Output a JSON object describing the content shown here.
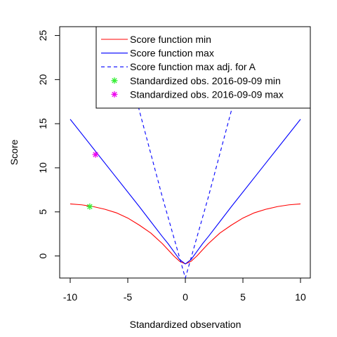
{
  "chart_data": {
    "type": "line",
    "title": "",
    "xlabel": "Standardized observation",
    "ylabel": "Score",
    "xlim": [
      -10,
      10
    ],
    "ylim": [
      -2.5,
      26
    ],
    "xticks": [
      -10,
      -5,
      0,
      5,
      10
    ],
    "yticks": [
      0,
      5,
      10,
      15,
      20,
      25
    ],
    "grid": false,
    "legend_position": "top-right",
    "series": [
      {
        "name": "Score function min",
        "kind": "line",
        "style": "solid",
        "color": "#ff0000",
        "x": [
          -10,
          -9,
          -8,
          -7,
          -6,
          -5,
          -4,
          -3,
          -2,
          -1.5,
          -1,
          -0.5,
          0,
          0.5,
          1,
          1.5,
          2,
          3,
          4,
          5,
          6,
          7,
          8,
          9,
          10
        ],
        "y": [
          5.9,
          5.8,
          5.6,
          5.3,
          4.9,
          4.3,
          3.5,
          2.6,
          1.4,
          0.7,
          0.0,
          -0.6,
          -0.9,
          -0.6,
          0.0,
          0.7,
          1.4,
          2.6,
          3.5,
          4.3,
          4.9,
          5.3,
          5.6,
          5.8,
          5.9
        ]
      },
      {
        "name": "Score function max",
        "kind": "line",
        "style": "solid",
        "color": "#0000ff",
        "x": [
          -10,
          -8,
          -6,
          -4,
          -3,
          -2,
          -1.5,
          -1,
          -0.5,
          0,
          0.5,
          1,
          1.5,
          2,
          3,
          4,
          6,
          8,
          10
        ],
        "y": [
          15.5,
          12.2,
          8.9,
          5.6,
          3.9,
          2.2,
          1.4,
          0.5,
          -0.4,
          -0.9,
          -0.4,
          0.5,
          1.4,
          2.2,
          3.9,
          5.6,
          8.9,
          12.2,
          15.5
        ]
      },
      {
        "name": "Score function max adj. for A",
        "kind": "line",
        "style": "dashed",
        "color": "#0000ff",
        "x": [
          -5.7,
          -4,
          -2,
          0,
          2,
          4,
          5.7
        ],
        "y": [
          26,
          16.5,
          6.7,
          -2.5,
          6.7,
          16.5,
          26
        ]
      },
      {
        "name": "Standardized obs. 2016-09-09 min",
        "kind": "points",
        "color": "#33ee33",
        "x": [
          -8.3
        ],
        "y": [
          5.6
        ]
      },
      {
        "name": "Standardized obs. 2016-09-09 max",
        "kind": "points",
        "color": "#ee00ee",
        "x": [
          -7.8
        ],
        "y": [
          11.5
        ]
      }
    ]
  }
}
